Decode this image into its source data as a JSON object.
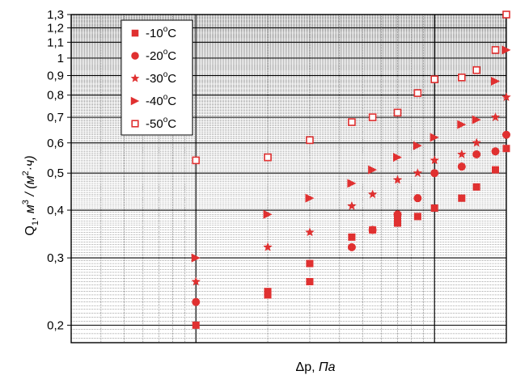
{
  "chart_data": {
    "type": "scatter",
    "title": "",
    "xlabel": {
      "main": "Δp",
      "unit": "Па"
    },
    "ylabel": {
      "main": "Q",
      "sub": "1",
      "unit_parts": [
        "м",
        "3",
        " / (м",
        "2",
        "·ч)"
      ]
    },
    "x_scale": "log",
    "y_scale": "log",
    "xlim": [
      3,
      200
    ],
    "ylim": [
      0.18,
      1.3
    ],
    "x_major_ticks": [
      10,
      100
    ],
    "x_tick_labels_shown": false,
    "y_tick_values": [
      0.2,
      0.3,
      0.4,
      0.5,
      0.6,
      0.7,
      0.8,
      0.9,
      1,
      1.1,
      1.2,
      1.3
    ],
    "y_tick_labels": [
      "0,2",
      "0,3",
      "0,4",
      "0,5",
      "0,6",
      "0,7",
      "0,8",
      "0,9",
      "1",
      "1,1",
      "1,2",
      "1,3"
    ],
    "grid": true,
    "legend_position": "top-left",
    "accent_color": "#e03030",
    "series": [
      {
        "name": "-10°C",
        "name_parts": [
          "-10",
          "o",
          "C"
        ],
        "marker": "square",
        "points": [
          [
            10,
            0.2
          ],
          [
            20,
            0.245
          ],
          [
            20,
            0.24
          ],
          [
            30,
            0.26
          ],
          [
            30,
            0.29
          ],
          [
            45,
            0.34
          ],
          [
            55,
            0.355
          ],
          [
            70,
            0.37
          ],
          [
            70,
            0.38
          ],
          [
            85,
            0.385
          ],
          [
            100,
            0.405
          ],
          [
            130,
            0.43
          ],
          [
            150,
            0.46
          ],
          [
            180,
            0.51
          ],
          [
            200,
            0.58
          ]
        ]
      },
      {
        "name": "-20°C",
        "name_parts": [
          "-20",
          "o",
          "C"
        ],
        "marker": "circle",
        "points": [
          [
            10,
            0.23
          ],
          [
            45,
            0.32
          ],
          [
            55,
            0.355
          ],
          [
            70,
            0.39
          ],
          [
            85,
            0.43
          ],
          [
            100,
            0.5
          ],
          [
            130,
            0.52
          ],
          [
            150,
            0.56
          ],
          [
            180,
            0.57
          ],
          [
            200,
            0.63
          ]
        ]
      },
      {
        "name": "-30°C",
        "name_parts": [
          "-30",
          "o",
          "C"
        ],
        "marker": "star",
        "points": [
          [
            10,
            0.26
          ],
          [
            20,
            0.32
          ],
          [
            30,
            0.35
          ],
          [
            45,
            0.41
          ],
          [
            55,
            0.44
          ],
          [
            70,
            0.48
          ],
          [
            85,
            0.5
          ],
          [
            100,
            0.54
          ],
          [
            130,
            0.56
          ],
          [
            150,
            0.6
          ],
          [
            180,
            0.7
          ],
          [
            200,
            0.79
          ]
        ]
      },
      {
        "name": "-40°C",
        "name_parts": [
          "-40",
          "o",
          "C"
        ],
        "marker": "triangle-right",
        "points": [
          [
            10,
            0.3
          ],
          [
            20,
            0.39
          ],
          [
            30,
            0.43
          ],
          [
            45,
            0.47
          ],
          [
            55,
            0.51
          ],
          [
            70,
            0.55
          ],
          [
            85,
            0.59
          ],
          [
            100,
            0.62
          ],
          [
            130,
            0.67
          ],
          [
            150,
            0.69
          ],
          [
            180,
            0.87
          ],
          [
            200,
            1.05
          ]
        ]
      },
      {
        "name": "-50°C",
        "name_parts": [
          "-50",
          "o",
          "C"
        ],
        "marker": "open-square",
        "points": [
          [
            10,
            0.54
          ],
          [
            20,
            0.55
          ],
          [
            30,
            0.61
          ],
          [
            45,
            0.68
          ],
          [
            55,
            0.7
          ],
          [
            70,
            0.72
          ],
          [
            85,
            0.81
          ],
          [
            100,
            0.88
          ],
          [
            130,
            0.89
          ],
          [
            150,
            0.93
          ],
          [
            180,
            1.05
          ],
          [
            200,
            1.3
          ]
        ]
      }
    ]
  }
}
